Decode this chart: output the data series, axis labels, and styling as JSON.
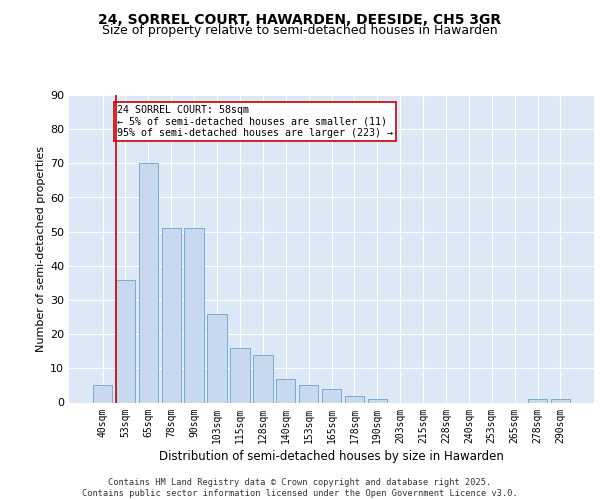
{
  "title1": "24, SORREL COURT, HAWARDEN, DEESIDE, CH5 3GR",
  "title2": "Size of property relative to semi-detached houses in Hawarden",
  "xlabel": "Distribution of semi-detached houses by size in Hawarden",
  "ylabel": "Number of semi-detached properties",
  "categories": [
    "40sqm",
    "53sqm",
    "65sqm",
    "78sqm",
    "90sqm",
    "103sqm",
    "115sqm",
    "128sqm",
    "140sqm",
    "153sqm",
    "165sqm",
    "178sqm",
    "190sqm",
    "203sqm",
    "215sqm",
    "228sqm",
    "240sqm",
    "253sqm",
    "265sqm",
    "278sqm",
    "290sqm"
  ],
  "values": [
    5,
    36,
    70,
    51,
    51,
    26,
    16,
    14,
    7,
    5,
    4,
    2,
    1,
    0,
    0,
    0,
    0,
    0,
    0,
    1,
    1
  ],
  "bar_color": "#c8d8ee",
  "bar_edge_color": "#7aadd4",
  "marker_color": "#cc0000",
  "annotation_text": "24 SORREL COURT: 58sqm\n← 5% of semi-detached houses are smaller (11)\n95% of semi-detached houses are larger (223) →",
  "annotation_box_color": "#ffffff",
  "annotation_box_edge": "#cc0000",
  "ylim": [
    0,
    90
  ],
  "yticks": [
    0,
    10,
    20,
    30,
    40,
    50,
    60,
    70,
    80,
    90
  ],
  "background_color": "#dce8f5",
  "footer": "Contains HM Land Registry data © Crown copyright and database right 2025.\nContains public sector information licensed under the Open Government Licence v3.0.",
  "title_fontsize": 10,
  "subtitle_fontsize": 9
}
